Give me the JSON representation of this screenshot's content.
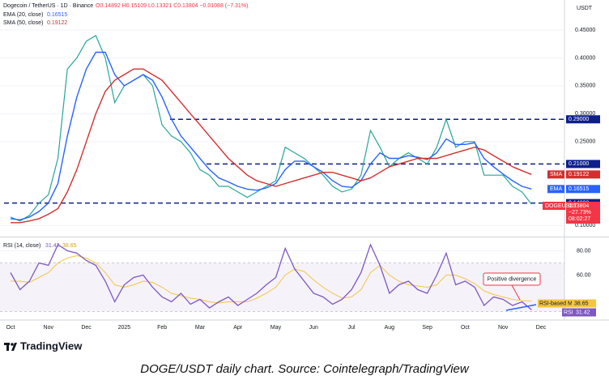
{
  "chart_data": {
    "type": "line",
    "header_title": "Dogecoin / TetherUS · 1D · Binance",
    "header_ohlc": "O0.14892  H0.15109  L0.13321  C0.13804  −0.01088 (−7.31%)",
    "currency": "USDT",
    "categories": [
      "Oct",
      null,
      null,
      null,
      "Nov",
      null,
      null,
      null,
      "Dec",
      null,
      null,
      null,
      "2025",
      null,
      null,
      null,
      "Feb",
      null,
      null,
      null,
      "Mar",
      null,
      null,
      null,
      "Apr",
      null,
      null,
      null,
      "May",
      null,
      null,
      null,
      "Jun",
      null,
      null,
      null,
      "Jul",
      null,
      null,
      null,
      "Aug",
      null,
      null,
      null,
      "Sep",
      null,
      null,
      null,
      "Oct",
      null,
      null,
      null,
      "Nov",
      null,
      null,
      null,
      "Dec"
    ],
    "series": [
      {
        "name": "DOGEUSDT",
        "color": "#26a69a",
        "values": [
          0.115,
          0.108,
          0.118,
          0.14,
          0.155,
          0.22,
          0.38,
          0.4,
          0.43,
          0.44,
          0.4,
          0.32,
          0.35,
          0.36,
          0.37,
          0.35,
          0.28,
          0.26,
          0.25,
          0.23,
          0.2,
          0.19,
          0.17,
          0.17,
          0.16,
          0.15,
          0.16,
          0.17,
          0.18,
          0.24,
          0.23,
          0.22,
          0.205,
          0.19,
          0.17,
          0.16,
          0.165,
          0.19,
          0.27,
          0.24,
          0.205,
          0.22,
          0.23,
          0.22,
          0.21,
          0.24,
          0.29,
          0.24,
          0.25,
          0.25,
          0.19,
          0.19,
          0.19,
          0.17,
          0.16,
          0.13804,
          null
        ]
      },
      {
        "name": "EMA (20, close)",
        "short_name": "EMA",
        "color": "#2962ff",
        "values": [
          0.112,
          0.11,
          0.115,
          0.125,
          0.14,
          0.175,
          0.26,
          0.33,
          0.38,
          0.41,
          0.41,
          0.37,
          0.35,
          0.36,
          0.37,
          0.36,
          0.33,
          0.29,
          0.26,
          0.24,
          0.22,
          0.2,
          0.185,
          0.178,
          0.17,
          0.165,
          0.163,
          0.167,
          0.175,
          0.2,
          0.215,
          0.215,
          0.205,
          0.195,
          0.18,
          0.17,
          0.168,
          0.18,
          0.21,
          0.23,
          0.22,
          0.22,
          0.225,
          0.222,
          0.218,
          0.23,
          0.255,
          0.245,
          0.245,
          0.248,
          0.22,
          0.205,
          0.192,
          0.18,
          0.17,
          0.16515,
          null
        ]
      },
      {
        "name": "SMA (50, close)",
        "short_name": "SMA",
        "color": "#d32f2f",
        "values": [
          0.105,
          0.105,
          0.108,
          0.112,
          0.12,
          0.13,
          0.16,
          0.2,
          0.25,
          0.3,
          0.34,
          0.36,
          0.37,
          0.38,
          0.38,
          0.37,
          0.36,
          0.34,
          0.32,
          0.3,
          0.28,
          0.26,
          0.24,
          0.22,
          0.205,
          0.19,
          0.18,
          0.175,
          0.17,
          0.175,
          0.18,
          0.185,
          0.19,
          0.195,
          0.195,
          0.19,
          0.185,
          0.18,
          0.185,
          0.195,
          0.205,
          0.21,
          0.215,
          0.22,
          0.22,
          0.22,
          0.225,
          0.23,
          0.235,
          0.24,
          0.235,
          0.225,
          0.215,
          0.205,
          0.198,
          0.19122,
          null
        ]
      }
    ],
    "price_change_label": "−27.73%",
    "countdown": "08:02:27",
    "ylim": [
      0.08,
      0.5
    ],
    "yticks": [
      {
        "value": 0.1,
        "label": "0.10000"
      },
      {
        "value": 0.25,
        "label": "0.25000"
      },
      {
        "value": 0.3,
        "label": "0.30000"
      },
      {
        "value": 0.35,
        "label": "0.35000"
      },
      {
        "value": 0.4,
        "label": "0.40000"
      },
      {
        "value": 0.45,
        "label": "0.45000"
      }
    ],
    "levels": [
      {
        "value": 0.29,
        "label": "0.29000"
      },
      {
        "value": 0.21,
        "label": "0.21000"
      },
      {
        "value": 0.14,
        "label": "0.14000"
      }
    ],
    "grid": true,
    "rsi": {
      "name": "RSI (14, close)",
      "short_name": "RSI",
      "color": "#7e57c2",
      "values": [
        62,
        48,
        55,
        70,
        68,
        85,
        80,
        78,
        72,
        68,
        55,
        38,
        52,
        58,
        60,
        50,
        42,
        38,
        45,
        36,
        40,
        33,
        38,
        42,
        35,
        40,
        45,
        52,
        58,
        82,
        65,
        55,
        45,
        42,
        36,
        40,
        48,
        62,
        85,
        68,
        45,
        52,
        55,
        48,
        45,
        60,
        78,
        52,
        55,
        50,
        35,
        42,
        40,
        35,
        38,
        31.42,
        null
      ],
      "ma": {
        "name": "RSI-based MA",
        "color": "#f5c542",
        "values": [
          55,
          55,
          54,
          58,
          62,
          70,
          74,
          76,
          74,
          70,
          62,
          52,
          50,
          52,
          55,
          54,
          50,
          45,
          43,
          41,
          40,
          38,
          37,
          38,
          38,
          38,
          41,
          45,
          50,
          60,
          65,
          63,
          56,
          50,
          45,
          41,
          42,
          48,
          62,
          68,
          60,
          55,
          52,
          51,
          50,
          52,
          60,
          60,
          57,
          53,
          47,
          44,
          42,
          40,
          39,
          38.65,
          null
        ]
      },
      "ylim": [
        23,
        91
      ],
      "yticks": [
        {
          "value": 60,
          "label": "60.00"
        },
        {
          "value": 80,
          "label": "80.00"
        }
      ],
      "band": [
        30,
        70
      ]
    },
    "annotation": "Positive divergence",
    "logo": "TradingView",
    "caption": "DOGE/USDT daily chart. Source: Cointelegraph/TradingView"
  }
}
